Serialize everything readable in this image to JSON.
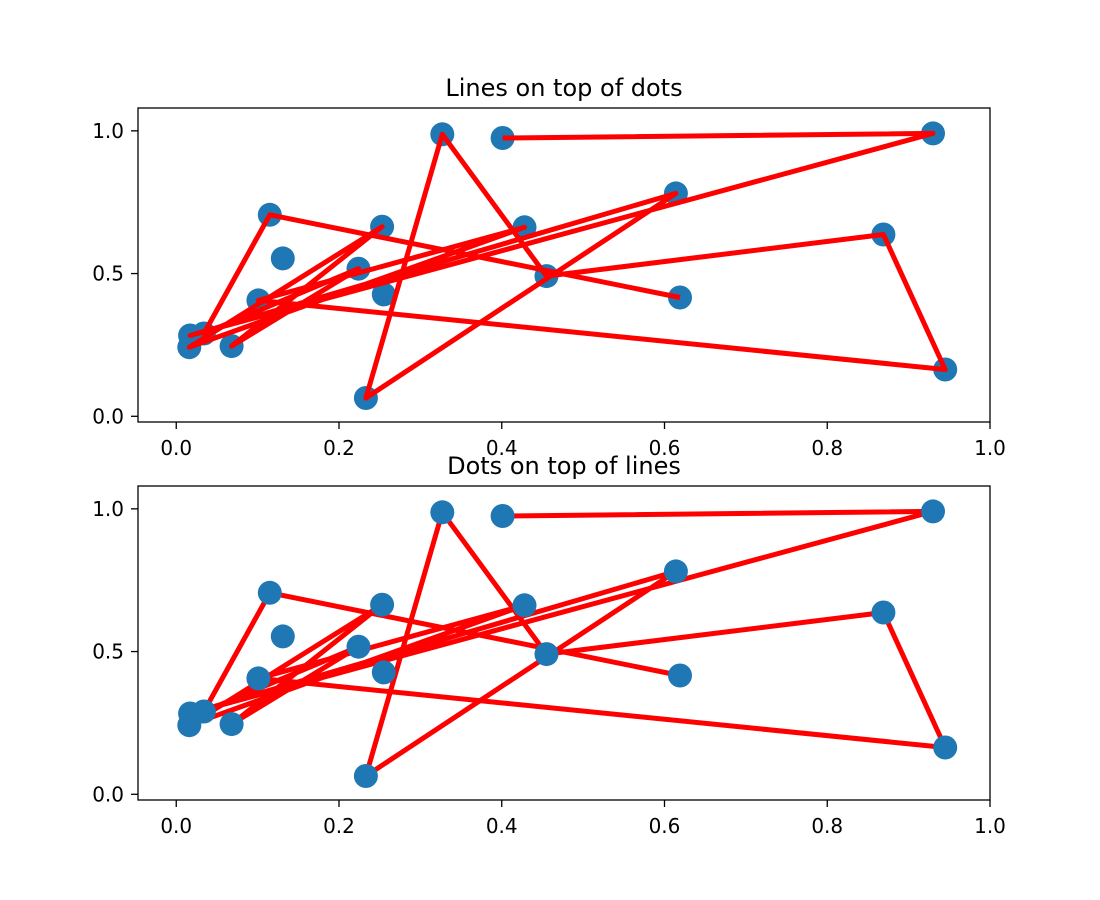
{
  "chart_data": [
    {
      "type": "scatter",
      "title": "Lines on top of dots",
      "xlabel": "",
      "ylabel": "",
      "xlim": [
        -0.047,
        1.0
      ],
      "ylim": [
        -0.02,
        1.08
      ],
      "xticks": [
        0.0,
        0.2,
        0.4,
        0.6,
        0.8,
        1.0
      ],
      "yticks": [
        0.0,
        0.5,
        1.0
      ],
      "xtick_labels": [
        "0.0",
        "0.2",
        "0.4",
        "0.6",
        "0.8",
        "1.0"
      ],
      "ytick_labels": [
        "0.0",
        "0.5",
        "1.0"
      ],
      "grid": false,
      "draw_order": [
        "points",
        "line"
      ],
      "points": {
        "color": "#1f77b4",
        "x": [
          0.401,
          0.93,
          0.233,
          0.327,
          0.455,
          0.869,
          0.945,
          0.101,
          0.017,
          0.115,
          0.253,
          0.016,
          0.614,
          0.068,
          0.428,
          0.034,
          0.224,
          0.131,
          0.619,
          0.255
        ],
        "y": [
          0.975,
          0.991,
          0.064,
          0.988,
          0.491,
          0.637,
          0.164,
          0.406,
          0.283,
          0.706,
          0.664,
          0.242,
          0.781,
          0.246,
          0.662,
          0.29,
          0.517,
          0.553,
          0.416,
          0.427
        ]
      },
      "line": {
        "color": "#ff0000",
        "x": [
          0.401,
          0.93,
          0.017,
          0.614,
          0.233,
          0.327,
          0.455,
          0.869,
          0.945,
          0.101,
          0.428,
          0.016,
          0.253,
          0.068,
          0.224,
          0.034,
          0.115,
          0.619
        ],
        "y": [
          0.975,
          0.991,
          0.283,
          0.781,
          0.064,
          0.988,
          0.491,
          0.637,
          0.164,
          0.406,
          0.662,
          0.242,
          0.664,
          0.246,
          0.517,
          0.29,
          0.706,
          0.416
        ]
      }
    },
    {
      "type": "scatter",
      "title": "Dots on top of lines",
      "xlabel": "",
      "ylabel": "",
      "xlim": [
        -0.047,
        1.0
      ],
      "ylim": [
        -0.02,
        1.08
      ],
      "xticks": [
        0.0,
        0.2,
        0.4,
        0.6,
        0.8,
        1.0
      ],
      "yticks": [
        0.0,
        0.5,
        1.0
      ],
      "xtick_labels": [
        "0.0",
        "0.2",
        "0.4",
        "0.6",
        "0.8",
        "1.0"
      ],
      "ytick_labels": [
        "0.0",
        "0.5",
        "1.0"
      ],
      "grid": false,
      "draw_order": [
        "line",
        "points"
      ],
      "points": {
        "color": "#1f77b4",
        "x": [
          0.401,
          0.93,
          0.233,
          0.327,
          0.455,
          0.869,
          0.945,
          0.101,
          0.017,
          0.115,
          0.253,
          0.016,
          0.614,
          0.068,
          0.428,
          0.034,
          0.224,
          0.131,
          0.619,
          0.255
        ],
        "y": [
          0.975,
          0.991,
          0.064,
          0.988,
          0.491,
          0.637,
          0.164,
          0.406,
          0.283,
          0.706,
          0.664,
          0.242,
          0.781,
          0.246,
          0.662,
          0.29,
          0.517,
          0.553,
          0.416,
          0.427
        ]
      },
      "line": {
        "color": "#ff0000",
        "x": [
          0.401,
          0.93,
          0.017,
          0.614,
          0.233,
          0.327,
          0.455,
          0.869,
          0.945,
          0.101,
          0.428,
          0.016,
          0.253,
          0.068,
          0.224,
          0.034,
          0.115,
          0.619
        ],
        "y": [
          0.975,
          0.991,
          0.283,
          0.781,
          0.064,
          0.988,
          0.491,
          0.637,
          0.164,
          0.406,
          0.662,
          0.242,
          0.664,
          0.246,
          0.517,
          0.29,
          0.706,
          0.416
        ]
      }
    }
  ]
}
